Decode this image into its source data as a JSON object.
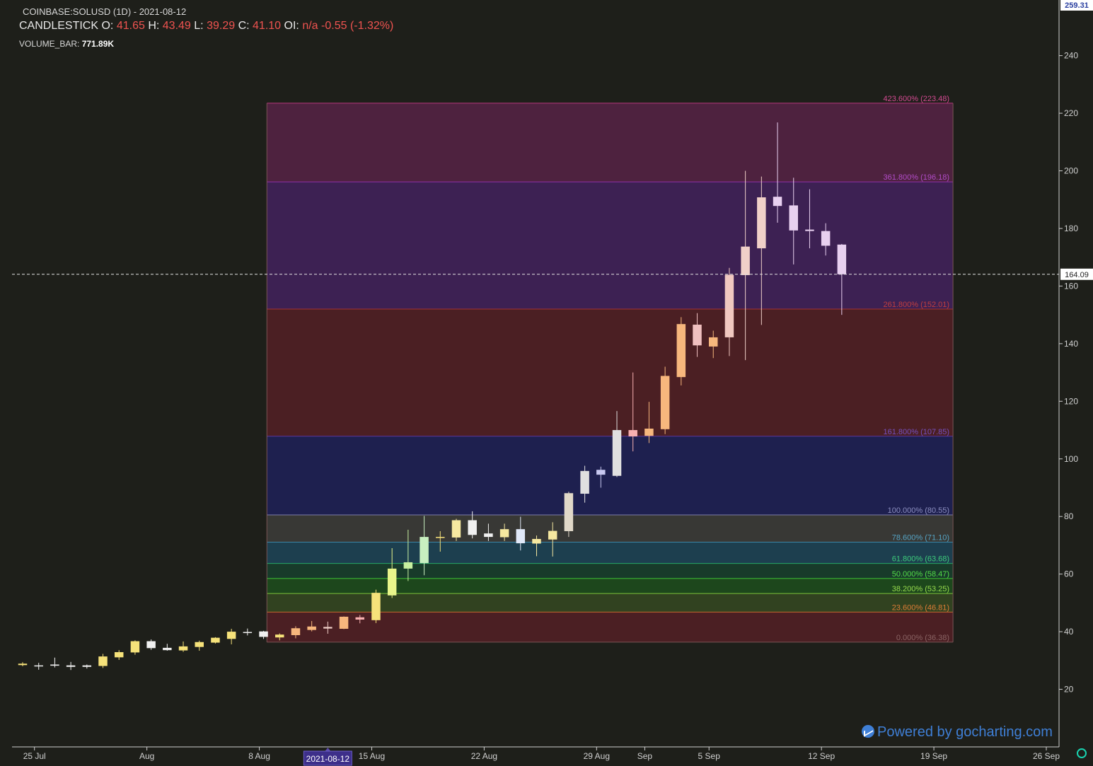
{
  "header": {
    "symbol": "COINBASE:SOLUSD (1D) - 2021-08-12",
    "series_type": "CANDLESTICK",
    "o_label": "O:",
    "o_value": "41.65",
    "h_label": "H:",
    "h_value": "43.49",
    "l_label": "L:",
    "l_value": "39.29",
    "c_label": "C:",
    "c_value": "41.10",
    "oi_label": "OI:",
    "oi_value": "n/a",
    "change": "-0.55",
    "change_pct": "(-1.32%)",
    "volume_label": "VOLUME_BAR:",
    "volume_value": "771.89K"
  },
  "branding": {
    "powered_by": "Powered by gocharting.com"
  },
  "colors": {
    "background": "#1e1f1a",
    "axis_text": "#d0d0d0",
    "down_value": "#ef5350",
    "brand": "#3f7fd6",
    "price_tag_bg": "#ffffff"
  },
  "chart_data": {
    "type": "candlestick",
    "y_scale": "linear",
    "ylim": [
      0,
      259.31
    ],
    "y_ticks": [
      20,
      40,
      60,
      80,
      100,
      120,
      140,
      160,
      180,
      200,
      220,
      240
    ],
    "x_ticks": [
      "25 Jul",
      "Aug",
      "8 Aug",
      "15 Aug",
      "22 Aug",
      "29 Aug",
      "Sep",
      "5 Sep",
      "12 Sep",
      "19 Sep",
      "26 Sep"
    ],
    "x_tick_dates": [
      "2021-07-25",
      "2021-08-01",
      "2021-08-08",
      "2021-08-15",
      "2021-08-22",
      "2021-08-29",
      "2021-09-01",
      "2021-09-05",
      "2021-09-12",
      "2021-09-19",
      "2021-09-26"
    ],
    "x_range": [
      "2021-07-24",
      "2021-09-26"
    ],
    "top_price_label": "259.31",
    "crosshair_price": "164.09",
    "crosshair_date": "2021-08-12",
    "candles": [
      {
        "date": "2021-07-24",
        "o": 28.4,
        "h": 29.4,
        "l": 28.0,
        "c": 28.9,
        "color": "#f6e27a"
      },
      {
        "date": "2021-07-25",
        "o": 28.3,
        "h": 29.2,
        "l": 26.8,
        "c": 28.0,
        "color": "#f0f0f0"
      },
      {
        "date": "2021-07-26",
        "o": 28.2,
        "h": 31.0,
        "l": 27.6,
        "c": 28.6,
        "color": "#f0f0f0"
      },
      {
        "date": "2021-07-27",
        "o": 28.3,
        "h": 29.5,
        "l": 26.7,
        "c": 27.8,
        "color": "#f0f0f0"
      },
      {
        "date": "2021-07-28",
        "o": 27.8,
        "h": 28.6,
        "l": 27.2,
        "c": 28.3,
        "color": "#f0f0f0"
      },
      {
        "date": "2021-07-29",
        "o": 28.1,
        "h": 32.3,
        "l": 27.4,
        "c": 31.4,
        "color": "#f6e27a"
      },
      {
        "date": "2021-07-30",
        "o": 31.1,
        "h": 33.6,
        "l": 30.2,
        "c": 32.9,
        "color": "#f6e27a"
      },
      {
        "date": "2021-07-31",
        "o": 32.8,
        "h": 37.0,
        "l": 32.0,
        "c": 36.7,
        "color": "#f6e27a"
      },
      {
        "date": "2021-08-01",
        "o": 36.7,
        "h": 37.3,
        "l": 33.7,
        "c": 34.3,
        "color": "#f0f0f0"
      },
      {
        "date": "2021-08-02",
        "o": 34.4,
        "h": 35.8,
        "l": 33.4,
        "c": 33.6,
        "color": "#f0f0f0"
      },
      {
        "date": "2021-08-03",
        "o": 33.5,
        "h": 36.6,
        "l": 33.0,
        "c": 34.9,
        "color": "#f6e27a"
      },
      {
        "date": "2021-08-04",
        "o": 34.7,
        "h": 36.9,
        "l": 33.4,
        "c": 36.4,
        "color": "#f6e27a"
      },
      {
        "date": "2021-08-05",
        "o": 36.2,
        "h": 38.1,
        "l": 35.9,
        "c": 37.9,
        "color": "#f6e27a"
      },
      {
        "date": "2021-08-06",
        "o": 37.5,
        "h": 41.0,
        "l": 35.6,
        "c": 40.0,
        "color": "#f6e27a"
      },
      {
        "date": "2021-08-07",
        "o": 39.9,
        "h": 41.1,
        "l": 38.7,
        "c": 39.7,
        "color": "#f0f0f0"
      },
      {
        "date": "2021-08-08",
        "o": 40.1,
        "h": 40.3,
        "l": 37.5,
        "c": 38.2,
        "color": "#f0f0f0"
      },
      {
        "date": "2021-08-09",
        "o": 38.0,
        "h": 39.4,
        "l": 37.0,
        "c": 39.0,
        "color": "#f6e27a"
      },
      {
        "date": "2021-08-10",
        "o": 38.8,
        "h": 41.9,
        "l": 37.7,
        "c": 41.2,
        "color": "#f7b77d"
      },
      {
        "date": "2021-08-11",
        "o": 40.6,
        "h": 43.7,
        "l": 40.1,
        "c": 41.8,
        "color": "#f7b77d"
      },
      {
        "date": "2021-08-12",
        "o": 41.65,
        "h": 43.49,
        "l": 39.29,
        "c": 41.1,
        "color": "#f0d0c8"
      },
      {
        "date": "2021-08-13",
        "o": 41.0,
        "h": 45.3,
        "l": 40.9,
        "c": 45.2,
        "color": "#f7b77d"
      },
      {
        "date": "2021-08-14",
        "o": 45.0,
        "h": 45.8,
        "l": 42.9,
        "c": 44.2,
        "color": "#f7b0b0"
      },
      {
        "date": "2021-08-15",
        "o": 44.0,
        "h": 54.6,
        "l": 43.0,
        "c": 53.5,
        "color": "#f6e27a"
      },
      {
        "date": "2021-08-16",
        "o": 52.6,
        "h": 69.0,
        "l": 51.7,
        "c": 61.9,
        "color": "#e8f58a"
      },
      {
        "date": "2021-08-17",
        "o": 61.9,
        "h": 75.4,
        "l": 57.6,
        "c": 64.1,
        "color": "#c8f0a0"
      },
      {
        "date": "2021-08-18",
        "o": 63.8,
        "h": 80.2,
        "l": 59.6,
        "c": 72.9,
        "color": "#c8f0c0"
      },
      {
        "date": "2021-08-19",
        "o": 72.6,
        "h": 74.9,
        "l": 67.8,
        "c": 72.9,
        "color": "#f6e27a"
      },
      {
        "date": "2021-08-20",
        "o": 72.7,
        "h": 79.2,
        "l": 71.5,
        "c": 78.7,
        "color": "#f6e8a0"
      },
      {
        "date": "2021-08-21",
        "o": 78.7,
        "h": 81.8,
        "l": 72.4,
        "c": 73.6,
        "color": "#f0f0f0"
      },
      {
        "date": "2021-08-22",
        "o": 74.1,
        "h": 77.5,
        "l": 71.5,
        "c": 72.9,
        "color": "#f0f0f0"
      },
      {
        "date": "2021-08-23",
        "o": 72.8,
        "h": 77.5,
        "l": 71.5,
        "c": 75.6,
        "color": "#f6e8a0"
      },
      {
        "date": "2021-08-24",
        "o": 75.6,
        "h": 79.9,
        "l": 68.2,
        "c": 70.7,
        "color": "#e0e8f8"
      },
      {
        "date": "2021-08-25",
        "o": 70.6,
        "h": 73.4,
        "l": 66.2,
        "c": 72.2,
        "color": "#f6e8a0"
      },
      {
        "date": "2021-08-26",
        "o": 72.0,
        "h": 78.0,
        "l": 66.1,
        "c": 75.0,
        "color": "#f6e8a0"
      },
      {
        "date": "2021-08-27",
        "o": 74.9,
        "h": 88.6,
        "l": 72.9,
        "c": 88.1,
        "color": "#e0d8c8"
      },
      {
        "date": "2021-08-28",
        "o": 87.9,
        "h": 97.6,
        "l": 84.8,
        "c": 95.8,
        "color": "#e0e0e0"
      },
      {
        "date": "2021-08-29",
        "o": 94.5,
        "h": 97.3,
        "l": 90.0,
        "c": 96.2,
        "color": "#c8c8f0"
      },
      {
        "date": "2021-08-30",
        "o": 94.1,
        "h": 116.6,
        "l": 93.7,
        "c": 110.0,
        "color": "#e0e0e0"
      },
      {
        "date": "2021-08-31",
        "o": 110.0,
        "h": 130.0,
        "l": 102.6,
        "c": 107.8,
        "color": "#f7b0b0"
      },
      {
        "date": "2021-09-01",
        "o": 108.0,
        "h": 119.8,
        "l": 105.5,
        "c": 110.5,
        "color": "#f7b77d"
      },
      {
        "date": "2021-09-02",
        "o": 110.3,
        "h": 132.0,
        "l": 108.6,
        "c": 128.8,
        "color": "#f7b77d"
      },
      {
        "date": "2021-09-03",
        "o": 128.4,
        "h": 149.2,
        "l": 125.5,
        "c": 146.8,
        "color": "#f7b77d"
      },
      {
        "date": "2021-09-04",
        "o": 146.6,
        "h": 150.6,
        "l": 135.4,
        "c": 139.4,
        "color": "#f0c0c0"
      },
      {
        "date": "2021-09-05",
        "o": 139.0,
        "h": 144.5,
        "l": 135.0,
        "c": 142.2,
        "color": "#f7b77d"
      },
      {
        "date": "2021-09-06",
        "o": 142.2,
        "h": 166.3,
        "l": 135.7,
        "c": 163.9,
        "color": "#f0c8c0"
      },
      {
        "date": "2021-09-07",
        "o": 163.8,
        "h": 200.0,
        "l": 134.3,
        "c": 173.7,
        "color": "#f0d0c8"
      },
      {
        "date": "2021-09-08",
        "o": 173.1,
        "h": 198.0,
        "l": 146.5,
        "c": 190.8,
        "color": "#f0d0c8"
      },
      {
        "date": "2021-09-09",
        "o": 191.0,
        "h": 216.8,
        "l": 182.0,
        "c": 187.8,
        "color": "#e8d0f0"
      },
      {
        "date": "2021-09-10",
        "o": 188.0,
        "h": 197.6,
        "l": 167.5,
        "c": 179.3,
        "color": "#e8d0f0"
      },
      {
        "date": "2021-09-11",
        "o": 179.6,
        "h": 193.6,
        "l": 173.1,
        "c": 179.1,
        "color": "#e8d0f0"
      },
      {
        "date": "2021-09-12",
        "o": 179.1,
        "h": 181.8,
        "l": 170.6,
        "c": 174.0,
        "color": "#e8d0f0"
      },
      {
        "date": "2021-09-13",
        "o": 174.4,
        "h": 174.6,
        "l": 150.0,
        "c": 164.09,
        "color": "#e8d0f0"
      }
    ],
    "fib_x_range": [
      "2021-08-09",
      "2021-09-19"
    ],
    "fib_levels": [
      {
        "label": "423.600% (223.48)",
        "value": 223.48,
        "fill": "#512341",
        "line": "#b8377d",
        "text": "#d44a92"
      },
      {
        "label": "361.800% (196.18)",
        "value": 196.18,
        "fill": "#3f2256",
        "line": "#9231a8",
        "text": "#b14cc8"
      },
      {
        "label": "261.800% (152.01)",
        "value": 152.01,
        "fill": "#4e2024",
        "line": "#a73430",
        "text": "#c33e3e"
      },
      {
        "label": "161.800% (107.85)",
        "value": 107.85,
        "fill": "#1f2152",
        "line": "#5b37a0",
        "text": "#7650c0"
      },
      {
        "label": "100.000% (80.55)",
        "value": 80.55,
        "fill": "#3a3a37",
        "line": "#7b7dab",
        "text": "#8c8ec0"
      },
      {
        "label": "78.600% (71.10)",
        "value": 71.1,
        "fill": "#1e4152",
        "line": "#3b86a6",
        "text": "#55a3c4"
      },
      {
        "label": "61.800% (63.68)",
        "value": 63.68,
        "fill": "#183d2b",
        "line": "#27a766",
        "text": "#3dcc7b"
      },
      {
        "label": "50.000% (58.47)",
        "value": 58.47,
        "fill": "#1d4a1c",
        "line": "#3ec334",
        "text": "#53de48"
      },
      {
        "label": "38.200% (53.25)",
        "value": 53.25,
        "fill": "#334521",
        "line": "#7cc13a",
        "text": "#97dc4d"
      },
      {
        "label": "23.600% (46.81)",
        "value": 46.81,
        "fill": "#4e2024",
        "line": "#c46a2e",
        "text": "#de7d36"
      },
      {
        "label": "0.000% (36.38)",
        "value": 36.38,
        "fill": "#4e2024",
        "line": "#7a5555",
        "text": "#8a6464"
      }
    ]
  }
}
